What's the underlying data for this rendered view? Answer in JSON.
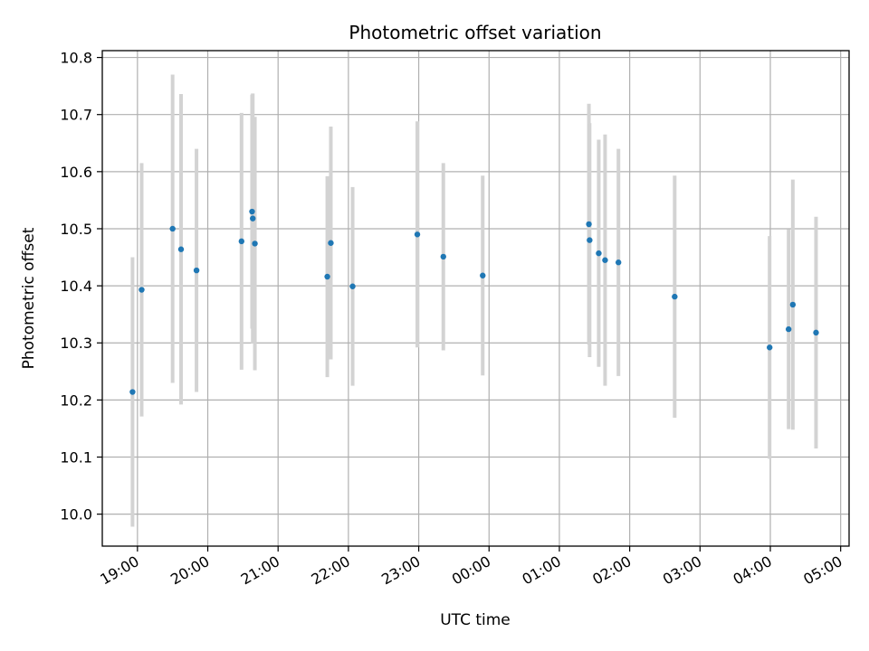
{
  "chart_data": {
    "type": "scatter",
    "title": "Photometric offset variation",
    "xlabel": "UTC time",
    "ylabel": "Photometric offset",
    "x_tick_labels": [
      "19:00",
      "20:00",
      "21:00",
      "22:00",
      "23:00",
      "00:00",
      "01:00",
      "02:00",
      "03:00",
      "04:00",
      "05:00"
    ],
    "x_tick_hours": [
      19,
      20,
      21,
      22,
      23,
      24,
      25,
      26,
      27,
      28,
      29
    ],
    "xlim_hours": [
      18.5,
      29.12
    ],
    "y_ticks": [
      10.0,
      10.1,
      10.2,
      10.3,
      10.4,
      10.5,
      10.6,
      10.7,
      10.8
    ],
    "y_tick_labels": [
      "10.0",
      "10.1",
      "10.2",
      "10.3",
      "10.4",
      "10.5",
      "10.6",
      "10.7",
      "10.8"
    ],
    "ylim": [
      9.944,
      10.812
    ],
    "grid": true,
    "colors": {
      "point": "#1f77b4",
      "errorbar": "#d3d3d3",
      "grid": "#b0b0b0"
    },
    "series": [
      {
        "points": [
          {
            "time": "18:56",
            "hour": 18.93,
            "y": 10.214,
            "err": 0.236
          },
          {
            "time": "19:04",
            "hour": 19.06,
            "y": 10.393,
            "err": 0.222
          },
          {
            "time": "19:30",
            "hour": 19.5,
            "y": 10.5,
            "err": 0.27
          },
          {
            "time": "19:37",
            "hour": 19.62,
            "y": 10.464,
            "err": 0.272
          },
          {
            "time": "19:51",
            "hour": 19.84,
            "y": 10.427,
            "err": 0.213
          },
          {
            "time": "20:29",
            "hour": 20.48,
            "y": 10.478,
            "err": 0.225
          },
          {
            "time": "20:38",
            "hour": 20.63,
            "y": 10.53,
            "err": 0.205
          },
          {
            "time": "20:38",
            "hour": 20.64,
            "y": 10.518,
            "err": 0.219
          },
          {
            "time": "20:40",
            "hour": 20.67,
            "y": 10.474,
            "err": 0.222
          },
          {
            "time": "21:42",
            "hour": 21.7,
            "y": 10.416,
            "err": 0.176
          },
          {
            "time": "21:45",
            "hour": 21.75,
            "y": 10.475,
            "err": 0.204
          },
          {
            "time": "22:04",
            "hour": 22.06,
            "y": 10.399,
            "err": 0.174
          },
          {
            "time": "22:59",
            "hour": 22.98,
            "y": 10.49,
            "err": 0.198
          },
          {
            "time": "23:21",
            "hour": 23.35,
            "y": 10.451,
            "err": 0.164
          },
          {
            "time": "23:55",
            "hour": 23.91,
            "y": 10.418,
            "err": 0.175
          },
          {
            "time": "01:25",
            "hour": 25.42,
            "y": 10.508,
            "err": 0.211
          },
          {
            "time": "01:25",
            "hour": 25.43,
            "y": 10.48,
            "err": 0.205
          },
          {
            "time": "01:33",
            "hour": 25.56,
            "y": 10.457,
            "err": 0.199
          },
          {
            "time": "01:39",
            "hour": 25.65,
            "y": 10.445,
            "err": 0.22
          },
          {
            "time": "01:50",
            "hour": 25.84,
            "y": 10.441,
            "err": 0.199
          },
          {
            "time": "02:38",
            "hour": 26.64,
            "y": 10.381,
            "err": 0.212
          },
          {
            "time": "03:59",
            "hour": 27.99,
            "y": 10.292,
            "err": 0.195
          },
          {
            "time": "04:15",
            "hour": 28.26,
            "y": 10.324,
            "err": 0.175
          },
          {
            "time": "04:19",
            "hour": 28.32,
            "y": 10.367,
            "err": 0.219
          },
          {
            "time": "04:39",
            "hour": 28.65,
            "y": 10.318,
            "err": 0.203
          }
        ]
      }
    ]
  }
}
